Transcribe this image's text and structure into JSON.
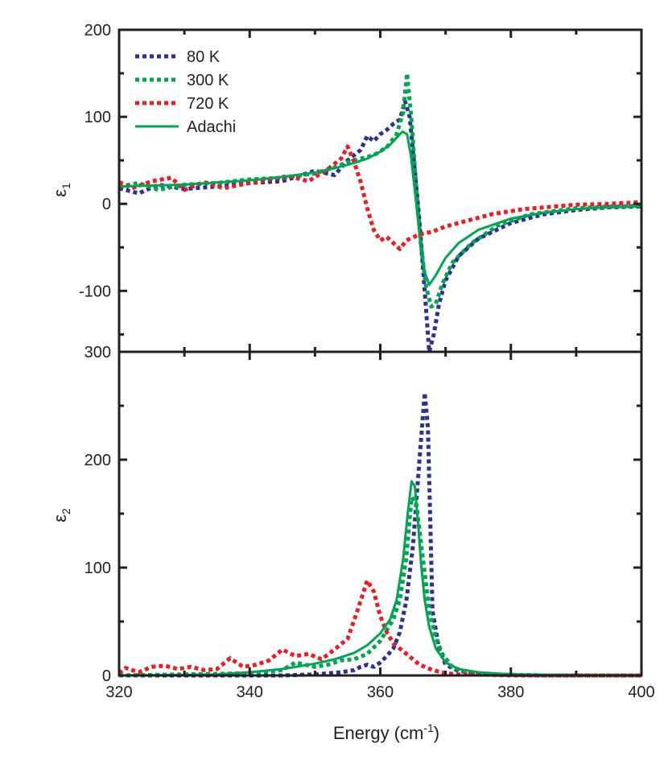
{
  "chart_data": [
    {
      "panel": "top",
      "type": "line",
      "ylabel": "ε",
      "ylabel_sub": "1",
      "ylim": [
        -170,
        200
      ],
      "yticks": [
        "-100",
        "0",
        "100",
        "200"
      ],
      "xlim": [
        320,
        400
      ],
      "grid": false,
      "legend": {
        "placement": "top-left",
        "entries": [
          "80 K",
          "300 K",
          "720 K",
          "Adachi"
        ]
      },
      "series": [
        {
          "name": "80 K",
          "color": "#2e3192",
          "style": "dotted",
          "x": [
            320,
            323,
            326,
            330,
            335,
            340,
            345,
            350,
            353,
            355,
            357,
            358,
            359,
            360,
            361,
            362,
            363,
            363.8,
            364.5,
            365.2,
            366,
            366.8,
            367.5,
            368.2,
            369,
            370,
            372,
            375,
            380,
            385,
            390,
            395,
            400
          ],
          "y": [
            18,
            12,
            22,
            17,
            20,
            24,
            26,
            38,
            33,
            50,
            62,
            78,
            72,
            80,
            85,
            92,
            97,
            118,
            100,
            45,
            -20,
            -100,
            -170,
            -150,
            -115,
            -88,
            -60,
            -40,
            -22,
            -12,
            -7,
            -4,
            -3
          ]
        },
        {
          "name": "300 K",
          "color": "#00a651",
          "style": "dotted",
          "x": [
            320,
            323,
            326,
            330,
            335,
            340,
            345,
            350,
            353,
            355,
            357,
            359,
            361,
            362.5,
            363.5,
            364.1,
            364.8,
            365.5,
            366.2,
            367,
            367.8,
            368.5,
            369.5,
            371,
            374,
            378,
            383,
            390,
            395,
            400
          ],
          "y": [
            20,
            24,
            16,
            22,
            24,
            28,
            30,
            35,
            42,
            48,
            52,
            56,
            65,
            80,
            105,
            150,
            95,
            20,
            -45,
            -95,
            -118,
            -115,
            -92,
            -68,
            -45,
            -25,
            -12,
            -5,
            -3,
            -2
          ]
        },
        {
          "name": "720 K",
          "color": "#ed1c24",
          "style": "dotted",
          "x": [
            320,
            322,
            325,
            328,
            330,
            333,
            336,
            340,
            343,
            346,
            349,
            352,
            354,
            355,
            356,
            357,
            358,
            359,
            360,
            361,
            362,
            363,
            364,
            366,
            368,
            370,
            373,
            377,
            382,
            390,
            395,
            400
          ],
          "y": [
            25,
            18,
            26,
            30,
            16,
            25,
            18,
            24,
            28,
            32,
            26,
            40,
            52,
            66,
            48,
            25,
            -5,
            -30,
            -42,
            -38,
            -45,
            -52,
            -42,
            -35,
            -32,
            -26,
            -20,
            -12,
            -6,
            -1,
            0,
            2
          ]
        },
        {
          "name": "Adachi",
          "color": "#00a651",
          "style": "solid",
          "x": [
            320,
            330,
            340,
            345,
            350,
            353,
            356,
            358,
            360,
            361.5,
            362.5,
            363.4,
            364.1,
            364.7,
            365.3,
            366,
            366.8,
            367.5,
            368.5,
            370,
            372,
            375,
            380,
            385,
            390,
            395,
            400
          ],
          "y": [
            20,
            22,
            27,
            31,
            36,
            41,
            47,
            52,
            60,
            68,
            76,
            83,
            80,
            55,
            15,
            -35,
            -78,
            -93,
            -82,
            -62,
            -45,
            -30,
            -17,
            -10,
            -6,
            -4,
            -3
          ]
        }
      ]
    },
    {
      "panel": "bottom",
      "type": "line",
      "ylabel": "ε",
      "ylabel_sub": "2",
      "ylim": [
        0,
        300
      ],
      "yticks": [
        "0",
        "100",
        "200",
        "300"
      ],
      "xlim": [
        320,
        400
      ],
      "xticks": [
        "320",
        "340",
        "360",
        "380",
        "400"
      ],
      "xlabel": "Energy (cm",
      "xlabel_sup": "-1",
      "xlabel_tail": ")",
      "grid": false,
      "series": [
        {
          "name": "80 K",
          "color": "#2e3192",
          "style": "dotted",
          "x": [
            320,
            330,
            340,
            345,
            350,
            352,
            354,
            356,
            357,
            358,
            359,
            360,
            361,
            362,
            363,
            364,
            365,
            366,
            366.8,
            367.3,
            368,
            369,
            370,
            372,
            376,
            385,
            400
          ],
          "y": [
            0,
            0,
            0,
            0,
            1,
            2,
            3,
            5,
            8,
            10,
            8,
            12,
            18,
            25,
            40,
            70,
            120,
            200,
            262,
            230,
            60,
            25,
            10,
            4,
            1,
            0,
            0
          ]
        },
        {
          "name": "300 K",
          "color": "#00a651",
          "style": "dotted",
          "x": [
            320,
            330,
            340,
            345,
            347,
            350,
            352,
            354,
            356,
            358,
            360,
            361,
            362,
            363,
            364,
            364.8,
            365.5,
            366.5,
            367.5,
            368.5,
            369.5,
            371,
            373,
            376,
            385,
            400
          ],
          "y": [
            0,
            1,
            2,
            5,
            12,
            8,
            10,
            14,
            15,
            20,
            32,
            42,
            52,
            70,
            110,
            165,
            160,
            110,
            60,
            35,
            20,
            8,
            3,
            1,
            0,
            0
          ]
        },
        {
          "name": "720 K",
          "color": "#ed1c24",
          "style": "dotted",
          "x": [
            320,
            321,
            323,
            325,
            327,
            329,
            331,
            333,
            335,
            337,
            339,
            341,
            343,
            345,
            347,
            349,
            351,
            353,
            355,
            356.5,
            358,
            359,
            360,
            361,
            362,
            363,
            364,
            366,
            368,
            370,
            372,
            375,
            380,
            390,
            400
          ],
          "y": [
            2,
            7,
            3,
            8,
            9,
            6,
            8,
            5,
            6,
            16,
            8,
            10,
            14,
            24,
            18,
            20,
            15,
            24,
            34,
            60,
            88,
            78,
            55,
            40,
            30,
            25,
            20,
            10,
            5,
            2,
            1,
            1,
            0,
            0,
            0
          ]
        },
        {
          "name": "Adachi",
          "color": "#00a651",
          "style": "solid",
          "x": [
            320,
            330,
            335,
            340,
            345,
            350,
            353,
            356,
            358,
            360,
            361.5,
            362.5,
            363.5,
            364.2,
            364.8,
            365.3,
            365.8,
            366.3,
            366.8,
            367.5,
            368.5,
            370,
            372,
            375,
            380,
            390,
            400
          ],
          "y": [
            0,
            0.5,
            1,
            3,
            6,
            11,
            15,
            21,
            28,
            39,
            52,
            70,
            108,
            150,
            180,
            175,
            140,
            100,
            70,
            45,
            25,
            12,
            6,
            3,
            1,
            0.3,
            0
          ]
        }
      ]
    }
  ]
}
